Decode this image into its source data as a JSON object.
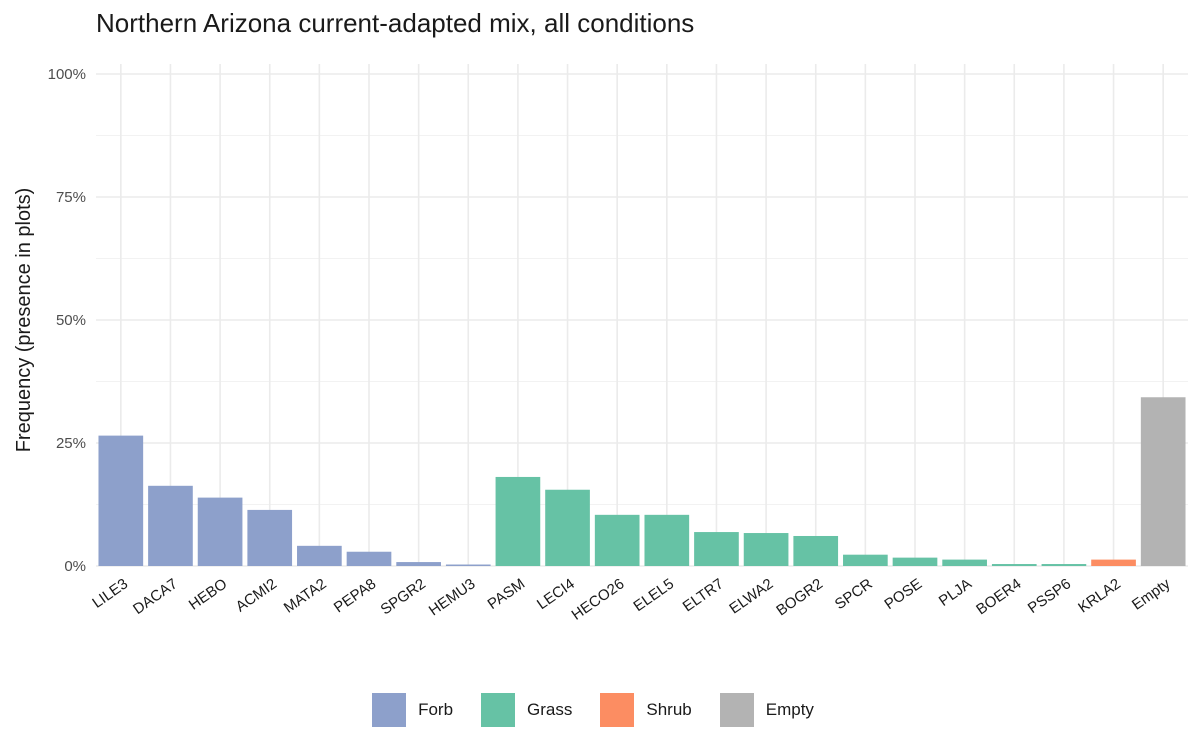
{
  "chart_data": {
    "type": "bar",
    "title": "Northern Arizona current-adapted mix, all conditions",
    "xlabel": "",
    "ylabel": "Frequency (presence in plots)",
    "ylim": [
      0,
      1
    ],
    "y_ticks": [
      "0%",
      "25%",
      "50%",
      "75%",
      "100%"
    ],
    "y_tick_values": [
      0,
      0.25,
      0.5,
      0.75,
      1.0
    ],
    "grid": true,
    "legend_position": "bottom",
    "categories": [
      "LILE3",
      "DACA7",
      "HEBO",
      "ACMI2",
      "MATA2",
      "PEPA8",
      "SPGR2",
      "HEMU3",
      "PASM",
      "LECI4",
      "HECO26",
      "ELEL5",
      "ELTR7",
      "ELWA2",
      "BOGR2",
      "SPCR",
      "POSE",
      "PLJA",
      "BOER4",
      "PSSP6",
      "KRLA2",
      "Empty"
    ],
    "values": [
      0.265,
      0.163,
      0.139,
      0.114,
      0.041,
      0.029,
      0.008,
      0.003,
      0.181,
      0.155,
      0.104,
      0.104,
      0.069,
      0.067,
      0.061,
      0.023,
      0.017,
      0.013,
      0.004,
      0.004,
      0.013,
      0.343
    ],
    "groups": [
      "Forb",
      "Forb",
      "Forb",
      "Forb",
      "Forb",
      "Forb",
      "Forb",
      "Forb",
      "Grass",
      "Grass",
      "Grass",
      "Grass",
      "Grass",
      "Grass",
      "Grass",
      "Grass",
      "Grass",
      "Grass",
      "Grass",
      "Grass",
      "Shrub",
      "Empty"
    ],
    "legend": [
      {
        "name": "Forb",
        "color": "#8DA0CB"
      },
      {
        "name": "Grass",
        "color": "#66C2A5"
      },
      {
        "name": "Shrub",
        "color": "#FC8D62"
      },
      {
        "name": "Empty",
        "color": "#B3B3B3"
      }
    ]
  }
}
